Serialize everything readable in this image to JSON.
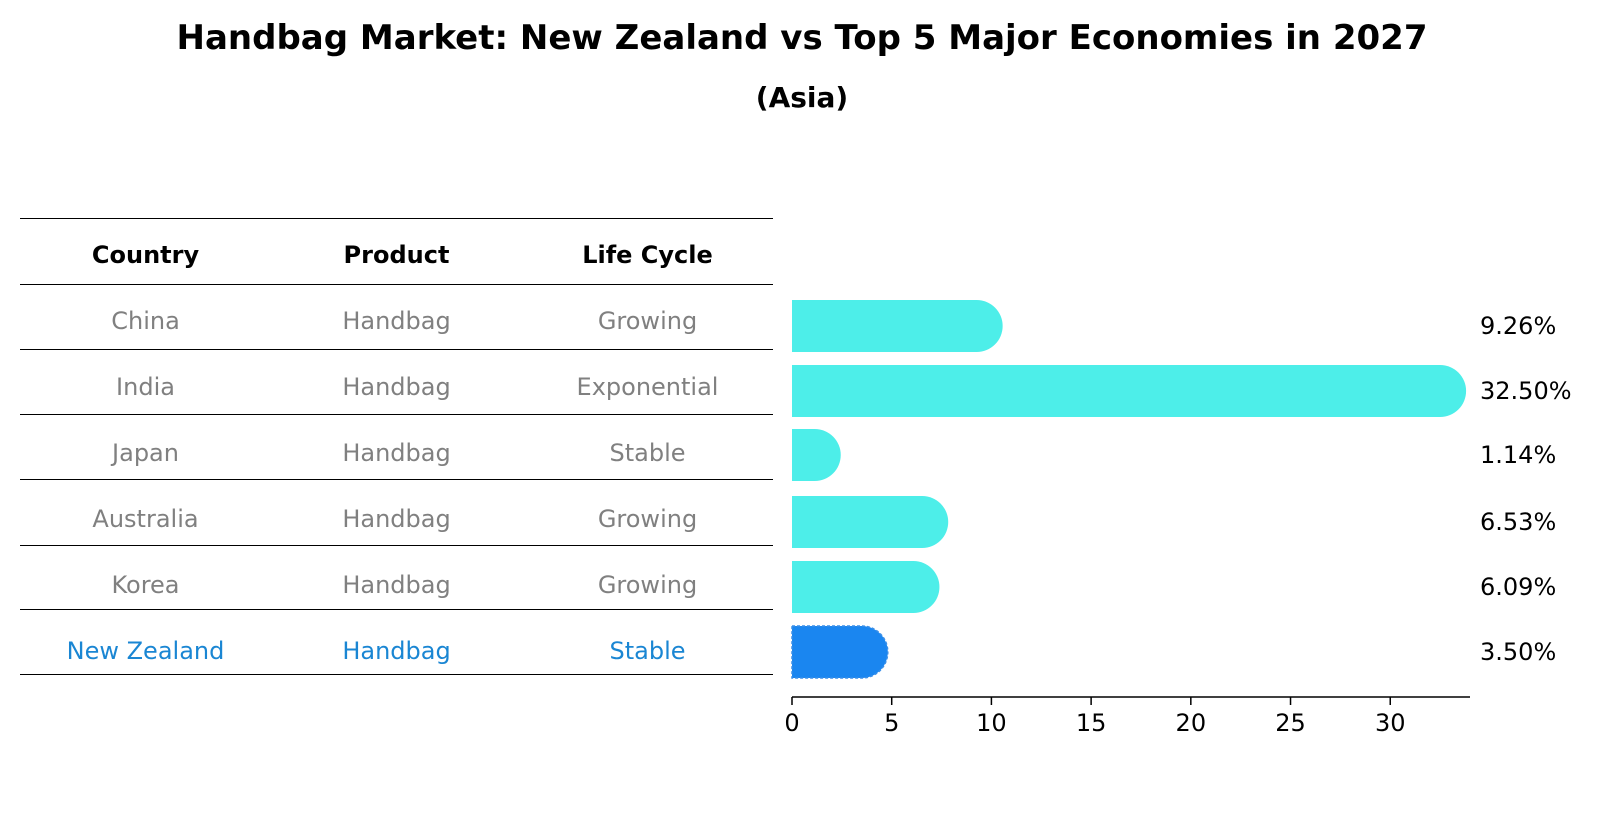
{
  "title": "Handbag Market: New Zealand vs Top 5 Major Economies in 2027",
  "subtitle": "(Asia)",
  "table": {
    "headers": [
      "Country",
      "Product",
      "Life Cycle"
    ],
    "rows": [
      {
        "country": "China",
        "product": "Handbag",
        "life_cycle": "Growing"
      },
      {
        "country": "India",
        "product": "Handbag",
        "life_cycle": "Exponential"
      },
      {
        "country": "Japan",
        "product": "Handbag",
        "life_cycle": "Stable"
      },
      {
        "country": "Australia",
        "product": "Handbag",
        "life_cycle": "Growing"
      },
      {
        "country": "Korea",
        "product": "Handbag",
        "life_cycle": "Growing"
      },
      {
        "country": "New Zealand",
        "product": "Handbag",
        "life_cycle": "Stable"
      }
    ]
  },
  "chart_data": {
    "type": "bar",
    "orientation": "horizontal",
    "categories": [
      "China",
      "India",
      "Japan",
      "Australia",
      "Korea",
      "New Zealand"
    ],
    "values": [
      9.26,
      32.5,
      1.14,
      6.53,
      6.09,
      3.5
    ],
    "value_labels": [
      "9.26%",
      "32.50%",
      "1.14%",
      "6.53%",
      "6.09%",
      "3.50%"
    ],
    "highlight": "New Zealand",
    "xlim": [
      0,
      34
    ],
    "xticks": [
      0,
      5,
      10,
      15,
      20,
      25,
      30
    ],
    "colors": {
      "default": "#4deee9",
      "highlight": "#1a86f0",
      "highlight_text": "#1a86d3"
    },
    "grid": false
  }
}
